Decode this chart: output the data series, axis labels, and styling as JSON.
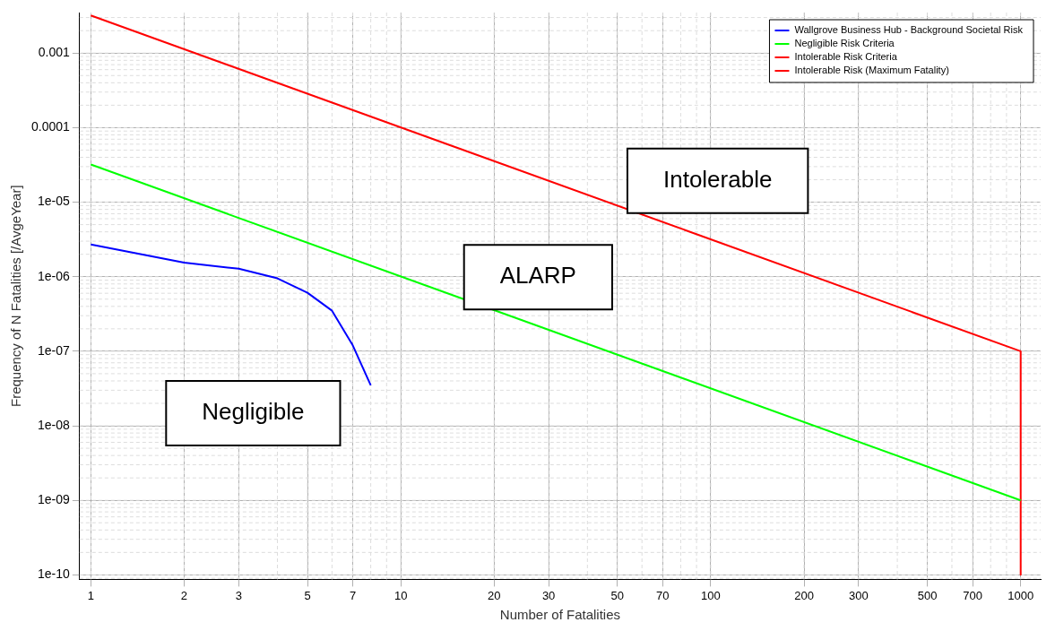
{
  "chart_data": {
    "type": "line",
    "xlabel": "Number of Fatalities",
    "ylabel": "Frequency of N Fatalities [/AvgeYear]",
    "log": "xy",
    "grid": true,
    "legend": "top right",
    "marker": "none",
    "line_style": "solid",
    "xlim": [
      0.92,
      1160
    ],
    "ylim": [
      8.7e-11,
      0.0035
    ],
    "xticks": [
      1,
      2,
      3,
      5,
      7,
      10,
      20,
      30,
      50,
      70,
      100,
      200,
      300,
      500,
      700,
      1000
    ],
    "yticks": [
      {
        "value": 1e-10,
        "label": "1e-10"
      },
      {
        "value": 1e-09,
        "label": "1e-09"
      },
      {
        "value": 1e-08,
        "label": "1e-08"
      },
      {
        "value": 1e-07,
        "label": "1e-07"
      },
      {
        "value": 1e-06,
        "label": "1e-06"
      },
      {
        "value": 1e-05,
        "label": "1e-05"
      },
      0.0001,
      0.001
    ],
    "series": [
      {
        "name": "Wallgrove Business Hub - Background Societal Risk",
        "color": "#0000ff",
        "x": [
          1,
          2,
          3,
          4,
          5,
          6,
          7,
          8
        ],
        "values": [
          2.7e-06,
          1.55e-06,
          1.28e-06,
          9.5e-07,
          6.1e-07,
          3.5e-07,
          1.2e-07,
          3.5e-08
        ]
      },
      {
        "name": "Negligible Risk Criteria",
        "color": "#00ff00",
        "x": [
          1,
          1000
        ],
        "values": [
          3.2e-05,
          1e-09
        ]
      },
      {
        "name": "Intolerable Risk Criteria",
        "color": "#ff0000",
        "x": [
          1,
          1000
        ],
        "values": [
          0.0032,
          1e-07
        ]
      },
      {
        "name": "Intolerable Risk (Maximum Fatality)",
        "color": "#ff0000",
        "x": [
          1000,
          1000
        ],
        "values": [
          1e-07,
          1e-10
        ]
      }
    ],
    "annotations": [
      "Intolerable",
      "ALARP",
      "Negligible"
    ]
  }
}
